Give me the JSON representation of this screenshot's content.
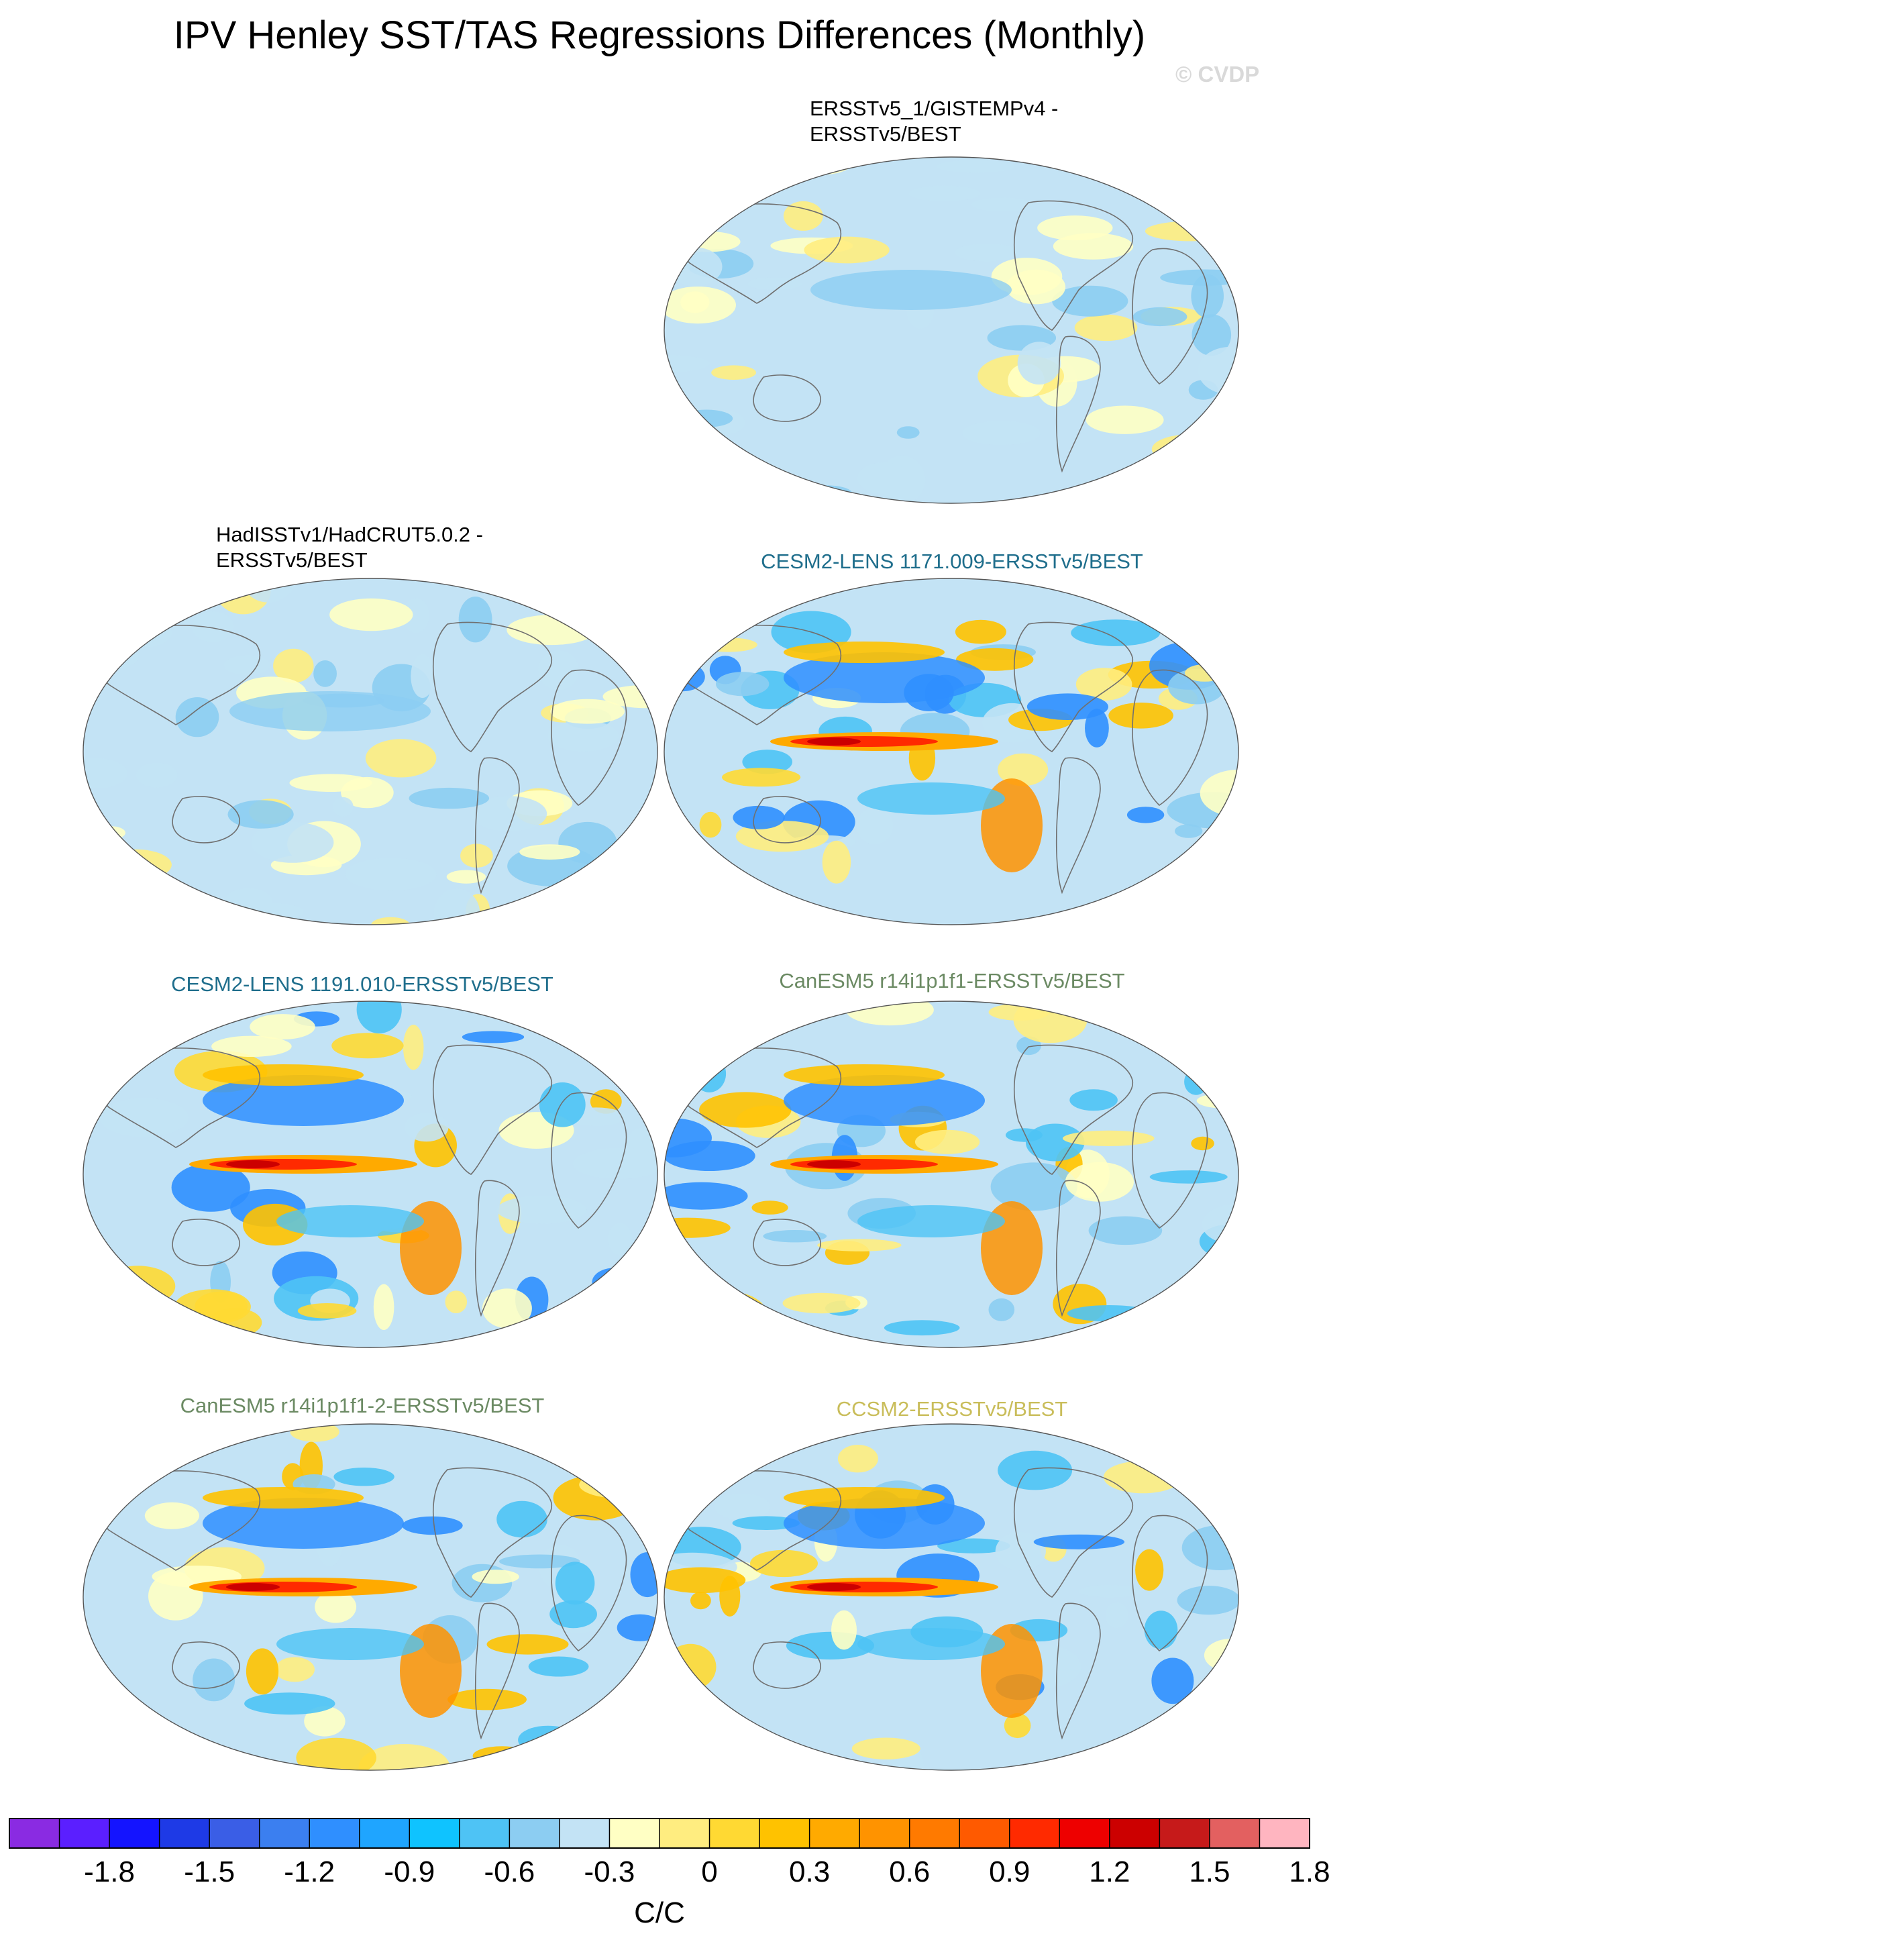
{
  "title": "IPV Henley SST/TAS Regressions Differences (Monthly)",
  "watermark": "© CVDP",
  "panels": [
    {
      "title": "ERSSTv5_1/GISTEMPv4 -\nERSSTv5/BEST",
      "color": "#000000",
      "style": "weak"
    },
    {
      "title": "HadISSTv1/HadCRUT5.0.2 -\nERSSTv5/BEST",
      "color": "#000000",
      "style": "weak"
    },
    {
      "title": "CESM2-LENS 1171.009-ERSSTv5/BEST",
      "color": "#1f6e8c",
      "style": "strong"
    },
    {
      "title": "CESM2-LENS 1191.010-ERSSTv5/BEST",
      "color": "#1f6e8c",
      "style": "strong"
    },
    {
      "title": "CanESM5 r14i1p1f1-ERSSTv5/BEST",
      "color": "#6b8a63",
      "style": "strong"
    },
    {
      "title": "CanESM5 r14i1p1f1-2-ERSSTv5/BEST",
      "color": "#6b8a63",
      "style": "strong"
    },
    {
      "title": "CCSM2-ERSSTv5/BEST",
      "color": "#c9bd5a",
      "style": "strong"
    }
  ],
  "colorbar": {
    "units": "C/C",
    "colors": [
      "#8a2be2",
      "#5b1fff",
      "#1414ff",
      "#1e3ae6",
      "#3a5ee6",
      "#3b7ff0",
      "#2f8fff",
      "#1fa5ff",
      "#0fc3ff",
      "#4ec3f5",
      "#8ccdf2",
      "#c3e3f5",
      "#ffffc4",
      "#ffed80",
      "#ffd933",
      "#ffc200",
      "#ffaa00",
      "#ff9300",
      "#ff7a00",
      "#ff5a00",
      "#ff2a00",
      "#ee0000",
      "#cc0000",
      "#c61a1a",
      "#e36060",
      "#ffb5c0"
    ],
    "labels": [
      "-1.8",
      "-1.5",
      "-1.2",
      "-0.9",
      "-0.6",
      "-0.3",
      "0",
      "0.3",
      "0.6",
      "0.9",
      "1.2",
      "1.5",
      "1.8"
    ]
  }
}
